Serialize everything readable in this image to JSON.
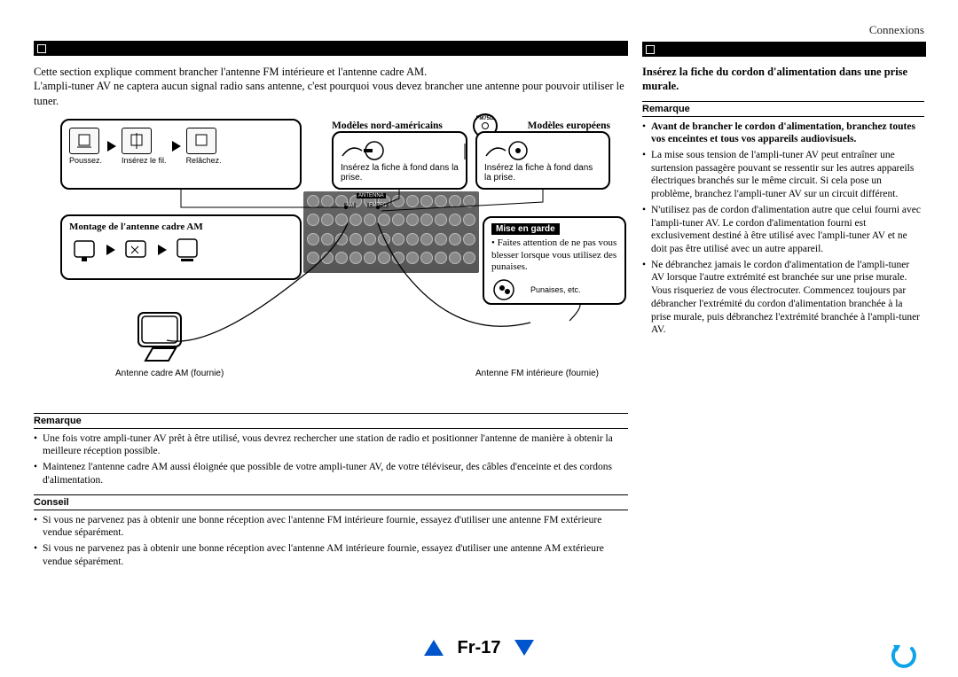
{
  "header": {
    "section": "Connexions"
  },
  "left": {
    "intro1": "Cette section explique comment brancher l'antenne FM intérieure et l'antenne cadre AM.",
    "intro2": "L'ampli-tuner AV ne captera aucun signal radio sans antenne, c'est pourquoi vous devez brancher une antenne pour pouvoir utiliser le tuner.",
    "box_tl_lbl1": "Poussez.",
    "box_tl_lbl2": "Insérez le fil.",
    "box_tl_lbl3": "Relâchez.",
    "models_nam": "Modèles nord-américains",
    "models_eu": "Modèles européens",
    "fm75": "FM75Ω",
    "box_nam_text": "Insérez la fiche à fond dans la prise.",
    "box_eu_text": "Insérez la fiche à fond dans la prise.",
    "box_am_title": "Montage de l'antenne cadre AM",
    "caution_label": "Mise en garde",
    "caution_text": "Faites attention de ne pas vous blesser lorsque vous utilisez des punaises.",
    "pins_label": "Punaises, etc.",
    "am_ant_label": "Antenne cadre AM (fournie)",
    "fm_ant_label": "Antenne FM intérieure (fournie)",
    "remarque_label": "Remarque",
    "remarque_items": [
      "Une fois votre ampli-tuner AV prêt à être utilisé, vous devrez rechercher une station de radio et positionner l'antenne de manière à obtenir la meilleure réception possible.",
      "Maintenez l'antenne cadre AM aussi éloignée que possible de votre ampli-tuner AV, de votre téléviseur, des câbles d'enceinte et des cordons d'alimentation."
    ],
    "conseil_label": "Conseil",
    "conseil_items": [
      "Si vous ne parvenez pas à obtenir une bonne réception avec l'antenne FM intérieure fournie, essayez d'utiliser une antenne FM extérieure vendue séparément.",
      "Si vous ne parvenez pas à obtenir une bonne réception avec l'antenne AM intérieure fournie, essayez d'utiliser une antenne AM extérieure vendue séparément."
    ]
  },
  "right": {
    "heading": "Insérez la fiche du cordon d'alimentation dans une prise murale.",
    "remarque_label": "Remarque",
    "note_bold": "Avant de brancher le cordon d'alimentation, branchez toutes vos enceintes et tous vos appareils audiovisuels.",
    "notes": [
      "La mise sous tension de l'ampli-tuner AV peut entraîner une surtension passagère pouvant se ressentir sur les autres appareils électriques branchés sur le même circuit. Si cela pose un problème, branchez l'ampli-tuner AV sur un circuit différent.",
      "N'utilisez pas de cordon d'alimentation autre que celui fourni avec l'ampli-tuner AV. Le cordon d'alimentation fourni est exclusivement destiné à être utilisé avec l'ampli-tuner AV et ne doit pas être utilisé avec un autre appareil.",
      "Ne débranchez jamais le cordon d'alimentation de l'ampli-tuner AV lorsque l'autre extrémité est branchée sur une prise murale. Vous risqueriez de vous électrocuter. Commencez toujours par débrancher l'extrémité du cordon d'alimentation branchée à la prise murale, puis débranchez l'extrémité branchée à l'ampli-tuner AV."
    ]
  },
  "footer": {
    "page": "Fr-17"
  },
  "colors": {
    "nav_blue": "#0055cc",
    "back_blue": "#0da3e8"
  }
}
